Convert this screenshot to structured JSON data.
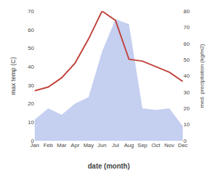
{
  "chart_data": {
    "type": "line",
    "categories": [
      "Jan",
      "Feb",
      "Mar",
      "Apr",
      "May",
      "Jun",
      "Jul",
      "Aug",
      "Sep",
      "Oct",
      "Nov",
      "Dec"
    ],
    "xlabel": "date (month)",
    "ylabel": "max temp (C)",
    "y2label": "med. precipitation (kg/m2)",
    "series": [
      {
        "type": "area",
        "axis": "y2",
        "color": "#c5cff0",
        "values": [
          13,
          20,
          16,
          23,
          27,
          55,
          75,
          72,
          20,
          19,
          20,
          9
        ]
      },
      {
        "type": "line",
        "color": "#c0413a",
        "values": [
          27,
          29,
          34,
          42,
          55,
          70,
          65,
          44,
          43,
          40,
          37,
          32
        ]
      }
    ],
    "ylim": [
      0,
      70
    ],
    "yticks": [
      0,
      10,
      20,
      30,
      40,
      50,
      60,
      70
    ],
    "y2lim": [
      0,
      80
    ],
    "y2ticks": [
      0,
      10,
      20,
      30,
      40,
      50,
      60,
      70,
      80
    ],
    "grid": false
  }
}
